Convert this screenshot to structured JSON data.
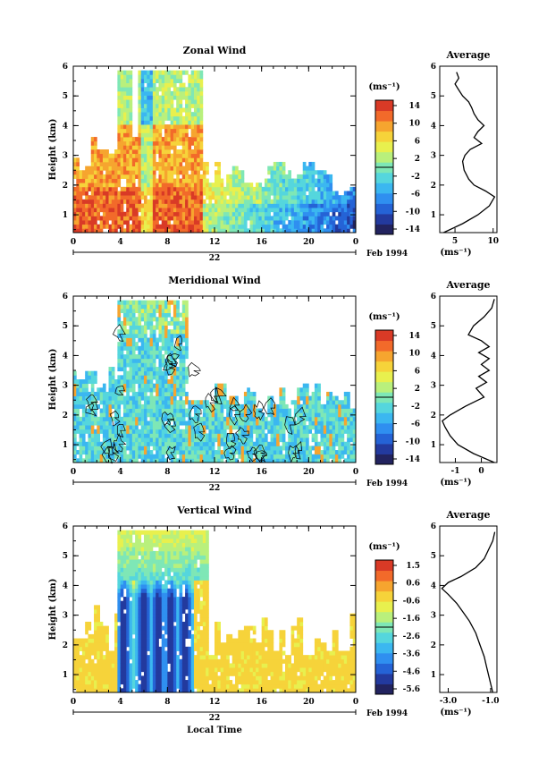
{
  "figure": {
    "x_axis_label": "Local Time",
    "date_label": "Feb 1994",
    "day_label": "22"
  },
  "colors": {
    "colormap": [
      "#22235f",
      "#233a9e",
      "#2563d6",
      "#2f8ff0",
      "#3bb7f0",
      "#55d6dd",
      "#7ee7b6",
      "#b9f07c",
      "#e8f04e",
      "#f6d33a",
      "#f6a52f",
      "#f26a2a",
      "#d93a26"
    ],
    "line": "#000000"
  },
  "chart_data": [
    {
      "type": "heatmap",
      "title": "Zonal Wind",
      "xlabel": "",
      "ylabel": "Height (km)",
      "x_ticks": [
        "0",
        "4",
        "8",
        "12",
        "16",
        "20",
        "0"
      ],
      "y_ticks": [
        "1",
        "2",
        "3",
        "4",
        "5",
        "6"
      ],
      "xlim_hours": [
        0,
        24
      ],
      "ylim_km": [
        0.4,
        6
      ],
      "units": "(ms⁻¹)",
      "colorbar_ticks": [
        "14",
        "10",
        "6",
        "2",
        "-2",
        "-6",
        "-10",
        "-14"
      ],
      "colorbar_range": [
        -16,
        16
      ],
      "contours": false,
      "profile": {
        "title": "Average",
        "x_ticks": [
          "5",
          "10"
        ],
        "xlim": [
          3,
          10.5
        ],
        "y_ticks": [
          "1",
          "2",
          "3",
          "4",
          "5",
          "6"
        ],
        "xlabel": "(ms⁻¹)",
        "height_km": [
          0.4,
          0.7,
          1.0,
          1.3,
          1.6,
          1.8,
          2.0,
          2.2,
          2.5,
          2.8,
          3.0,
          3.2,
          3.4,
          3.6,
          3.8,
          4.0,
          4.2,
          4.4,
          4.6,
          4.8,
          5.0,
          5.2,
          5.4,
          5.6,
          5.8
        ],
        "value": [
          3.5,
          6.0,
          8.0,
          9.5,
          10.2,
          9.0,
          7.5,
          6.8,
          6.2,
          6.0,
          6.3,
          7.0,
          8.5,
          7.5,
          8.0,
          8.8,
          8.0,
          7.5,
          7.2,
          6.8,
          6.0,
          5.5,
          5.0,
          5.5,
          5.2
        ]
      }
    },
    {
      "type": "heatmap",
      "title": "Meridional Wind",
      "xlabel": "",
      "ylabel": "Height (km)",
      "x_ticks": [
        "0",
        "4",
        "8",
        "12",
        "16",
        "20",
        "0"
      ],
      "y_ticks": [
        "1",
        "2",
        "3",
        "4",
        "5",
        "6"
      ],
      "xlim_hours": [
        0,
        24
      ],
      "ylim_km": [
        0.4,
        6
      ],
      "units": "(ms⁻¹)",
      "colorbar_ticks": [
        "14",
        "10",
        "6",
        "2",
        "-2",
        "-6",
        "-10",
        "-14"
      ],
      "colorbar_range": [
        -16,
        16
      ],
      "contours": true,
      "profile": {
        "title": "Average",
        "x_ticks": [
          "-1",
          "0"
        ],
        "xlim": [
          -1.6,
          0.6
        ],
        "y_ticks": [
          "1",
          "2",
          "3",
          "4",
          "5",
          "6"
        ],
        "xlabel": "(ms⁻¹)",
        "height_km": [
          0.4,
          0.7,
          1.0,
          1.3,
          1.6,
          1.8,
          2.0,
          2.3,
          2.6,
          2.9,
          3.1,
          3.3,
          3.5,
          3.7,
          3.9,
          4.1,
          4.3,
          4.5,
          4.7,
          5.0,
          5.3,
          5.6,
          5.9
        ],
        "value": [
          0.5,
          -0.3,
          -0.9,
          -1.2,
          -1.4,
          -1.5,
          -1.2,
          -0.6,
          0.1,
          -0.2,
          0.2,
          -0.1,
          0.3,
          0.0,
          0.3,
          -0.1,
          0.3,
          0.0,
          -0.5,
          -0.3,
          0.1,
          0.4,
          0.5
        ]
      }
    },
    {
      "type": "heatmap",
      "title": "Vertical Wind",
      "xlabel": "Local Time",
      "ylabel": "Height (km)",
      "x_ticks": [
        "0",
        "4",
        "8",
        "12",
        "16",
        "20",
        "0"
      ],
      "y_ticks": [
        "1",
        "2",
        "3",
        "4",
        "5",
        "6"
      ],
      "xlim_hours": [
        0,
        24
      ],
      "ylim_km": [
        0.4,
        6
      ],
      "units": "(ms⁻¹)",
      "colorbar_ticks": [
        "1.5",
        "0.6",
        "-0.6",
        "-1.6",
        "-2.6",
        "-3.6",
        "-4.6",
        "-5.6"
      ],
      "colorbar_range": [
        -6,
        2
      ],
      "contours": false,
      "profile": {
        "title": "Average",
        "x_ticks": [
          "-3.0",
          "-1.0"
        ],
        "xlim": [
          -3.4,
          -0.7
        ],
        "y_ticks": [
          "1",
          "2",
          "3",
          "4",
          "5",
          "6"
        ],
        "xlabel": "(ms⁻¹)",
        "height_km": [
          0.4,
          0.7,
          1.0,
          1.3,
          1.6,
          2.0,
          2.4,
          2.8,
          3.1,
          3.4,
          3.7,
          3.9,
          4.1,
          4.3,
          4.6,
          4.9,
          5.2,
          5.5,
          5.8
        ],
        "value": [
          -0.9,
          -1.0,
          -1.1,
          -1.2,
          -1.3,
          -1.5,
          -1.7,
          -2.0,
          -2.3,
          -2.6,
          -3.0,
          -3.3,
          -3.0,
          -2.4,
          -1.7,
          -1.3,
          -1.1,
          -0.9,
          -0.8
        ]
      }
    }
  ]
}
